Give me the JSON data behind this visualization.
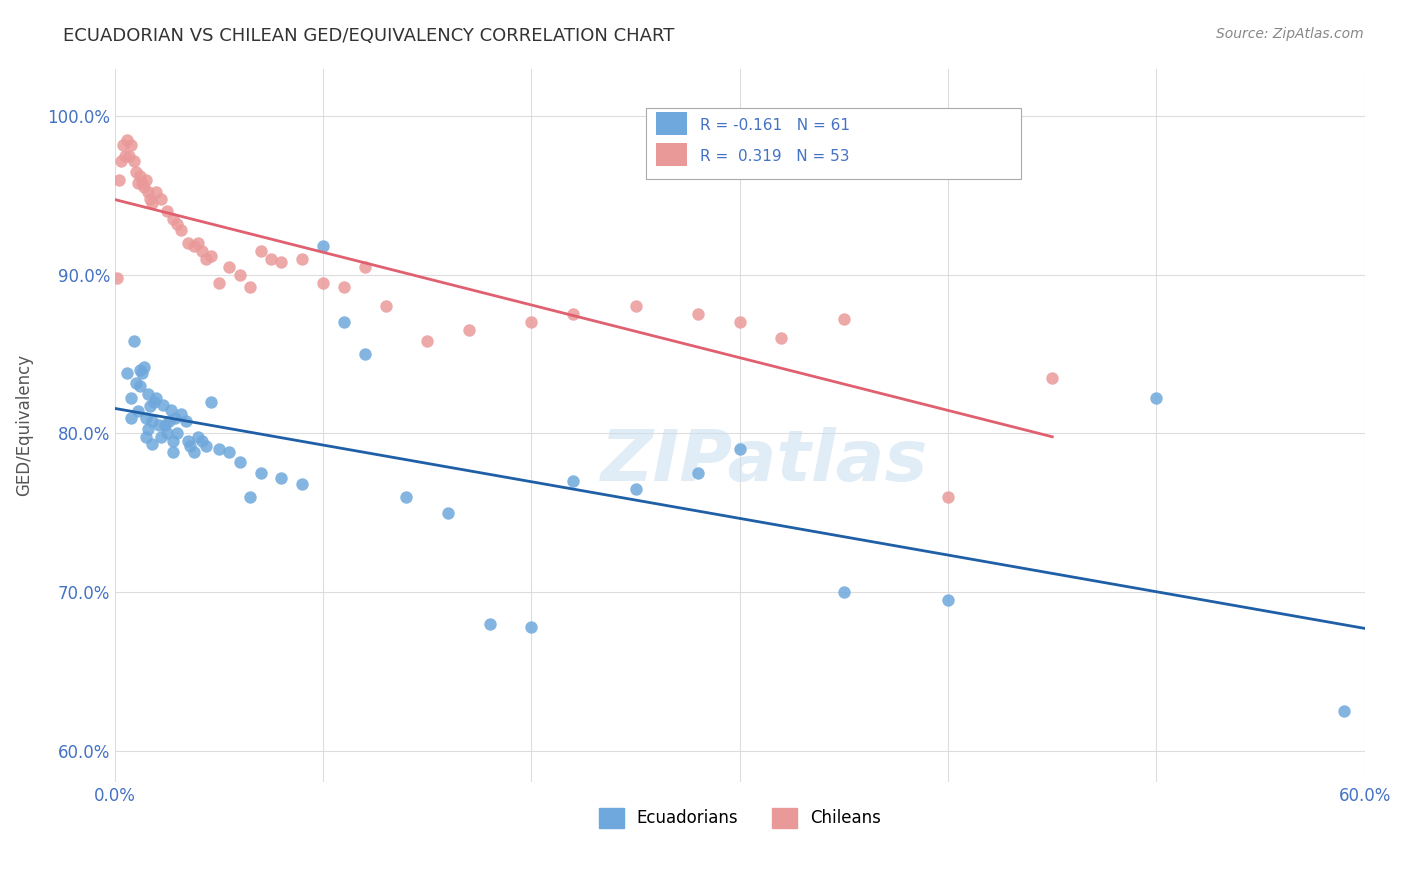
{
  "title": "ECUADORIAN VS CHILEAN GED/EQUIVALENCY CORRELATION CHART",
  "source": "Source: ZipAtlas.com",
  "ylabel": "GED/Equivalency",
  "xlim": [
    0.0,
    0.6
  ],
  "ylim": [
    0.58,
    1.03
  ],
  "xticks": [
    0.0,
    0.1,
    0.2,
    0.3,
    0.4,
    0.5,
    0.6
  ],
  "xtick_labels": [
    "0.0%",
    "",
    "",
    "",
    "",
    "",
    "60.0%"
  ],
  "yticks": [
    0.6,
    0.7,
    0.8,
    0.9,
    1.0
  ],
  "ytick_labels": [
    "60.0%",
    "70.0%",
    "80.0%",
    "90.0%",
    "100.0%"
  ],
  "background_color": "#ffffff",
  "grid_color": "#dddddd",
  "watermark": "ZIPatlas",
  "legend_r1": "R = -0.161",
  "legend_n1": "N = 61",
  "legend_r2": "R =  0.319",
  "legend_n2": "N = 53",
  "blue_color": "#6fa8dc",
  "pink_color": "#ea9999",
  "line_blue": "#1f5fa6",
  "line_pink": "#e06070",
  "ecuadorians_x": [
    0.006,
    0.008,
    0.008,
    0.009,
    0.01,
    0.011,
    0.012,
    0.012,
    0.013,
    0.014,
    0.015,
    0.015,
    0.016,
    0.016,
    0.017,
    0.018,
    0.018,
    0.019,
    0.02,
    0.021,
    0.022,
    0.023,
    0.024,
    0.025,
    0.026,
    0.027,
    0.028,
    0.028,
    0.029,
    0.03,
    0.032,
    0.034,
    0.035,
    0.036,
    0.038,
    0.04,
    0.042,
    0.044,
    0.046,
    0.05,
    0.055,
    0.06,
    0.065,
    0.07,
    0.08,
    0.09,
    0.1,
    0.11,
    0.12,
    0.14,
    0.16,
    0.18,
    0.2,
    0.22,
    0.25,
    0.28,
    0.3,
    0.35,
    0.4,
    0.5,
    0.59
  ],
  "ecuadorians_y": [
    0.838,
    0.822,
    0.81,
    0.858,
    0.832,
    0.814,
    0.84,
    0.83,
    0.838,
    0.842,
    0.81,
    0.798,
    0.825,
    0.803,
    0.817,
    0.808,
    0.793,
    0.82,
    0.822,
    0.805,
    0.798,
    0.818,
    0.805,
    0.8,
    0.808,
    0.815,
    0.795,
    0.788,
    0.81,
    0.8,
    0.812,
    0.808,
    0.795,
    0.792,
    0.788,
    0.798,
    0.795,
    0.792,
    0.82,
    0.79,
    0.788,
    0.782,
    0.76,
    0.775,
    0.772,
    0.768,
    0.918,
    0.87,
    0.85,
    0.76,
    0.75,
    0.68,
    0.678,
    0.77,
    0.765,
    0.775,
    0.79,
    0.7,
    0.695,
    0.822,
    0.625
  ],
  "chileans_x": [
    0.001,
    0.002,
    0.003,
    0.004,
    0.005,
    0.006,
    0.007,
    0.008,
    0.009,
    0.01,
    0.011,
    0.012,
    0.013,
    0.014,
    0.015,
    0.016,
    0.017,
    0.018,
    0.02,
    0.022,
    0.025,
    0.028,
    0.03,
    0.032,
    0.035,
    0.038,
    0.04,
    0.042,
    0.044,
    0.046,
    0.05,
    0.055,
    0.06,
    0.065,
    0.07,
    0.075,
    0.08,
    0.09,
    0.1,
    0.11,
    0.12,
    0.13,
    0.15,
    0.17,
    0.2,
    0.22,
    0.25,
    0.28,
    0.3,
    0.32,
    0.35,
    0.4,
    0.45
  ],
  "chileans_y": [
    0.898,
    0.96,
    0.972,
    0.982,
    0.975,
    0.985,
    0.975,
    0.982,
    0.972,
    0.965,
    0.958,
    0.962,
    0.958,
    0.955,
    0.96,
    0.952,
    0.948,
    0.945,
    0.952,
    0.948,
    0.94,
    0.935,
    0.932,
    0.928,
    0.92,
    0.918,
    0.92,
    0.915,
    0.91,
    0.912,
    0.895,
    0.905,
    0.9,
    0.892,
    0.915,
    0.91,
    0.908,
    0.91,
    0.895,
    0.892,
    0.905,
    0.88,
    0.858,
    0.865,
    0.87,
    0.875,
    0.88,
    0.875,
    0.87,
    0.86,
    0.872,
    0.76,
    0.835
  ]
}
